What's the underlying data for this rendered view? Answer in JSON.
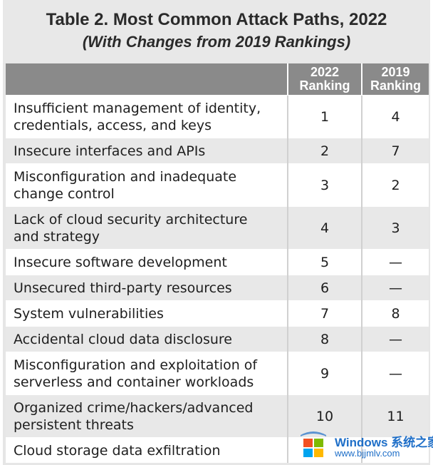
{
  "title": "Table 2. Most Common Attack Paths, 2022",
  "subtitle": "(With Changes from 2019 Rankings)",
  "columns": {
    "col_2022": [
      "2022",
      "Ranking"
    ],
    "col_2019": [
      "2019",
      "Ranking"
    ]
  },
  "rows": [
    {
      "label": [
        "Insufficient management of identity,",
        "credentials, access, and keys"
      ],
      "r2022": "1",
      "r2019": "4"
    },
    {
      "label": [
        "Insecure interfaces and APIs"
      ],
      "r2022": "2",
      "r2019": "7"
    },
    {
      "label": [
        "Misconfiguration and inadequate",
        "change control"
      ],
      "r2022": "3",
      "r2019": "2"
    },
    {
      "label": [
        "Lack of cloud security architecture",
        "and strategy"
      ],
      "r2022": "4",
      "r2019": "3"
    },
    {
      "label": [
        "Insecure software development"
      ],
      "r2022": "5",
      "r2019": "—"
    },
    {
      "label": [
        "Unsecured third-party resources"
      ],
      "r2022": "6",
      "r2019": "—"
    },
    {
      "label": [
        "System vulnerabilities"
      ],
      "r2022": "7",
      "r2019": "8"
    },
    {
      "label": [
        "Accidental cloud data disclosure"
      ],
      "r2022": "8",
      "r2019": "—"
    },
    {
      "label": [
        "Misconfiguration and exploitation of",
        "serverless and container workloads"
      ],
      "r2022": "9",
      "r2019": "—"
    },
    {
      "label": [
        "Organized crime/hackers/advanced",
        "persistent threats"
      ],
      "r2022": "10",
      "r2019": "11"
    },
    {
      "label": [
        "Cloud storage data exfiltration"
      ],
      "r2022": "",
      "r2019": ""
    }
  ],
  "watermark": {
    "brand": "Windows 系统之家",
    "url": "www.bjjmlv.com",
    "colors": [
      "#f25022",
      "#7fba00",
      "#00a4ef",
      "#ffb900"
    ]
  },
  "colors": {
    "header_bg": "#8a8a8a",
    "row_white": "#ffffff",
    "row_grey": "#e8e8e8"
  }
}
